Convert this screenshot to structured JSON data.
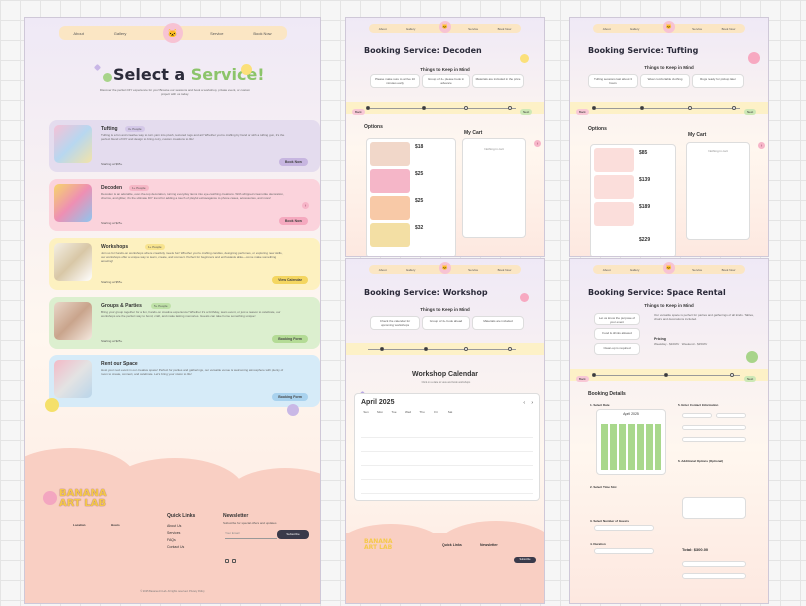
{
  "nav": {
    "about": "About",
    "gallery": "Gallery",
    "service": "Service",
    "book": "Book Now"
  },
  "main": {
    "title_pre": "Select a ",
    "title_em": "Service!",
    "subtitle": "Discover the perfect DIY experience for you! Browse our sessions and book a workshop, private event, or custom project with us today."
  },
  "services": [
    {
      "title": "Tufting",
      "badge": "3+ People",
      "desc": "Tufting is a fun and creative way to turn yarn into plush, textured rugs and art! Whether you're crafting by hand or with a tufting gun, it's the perfect blend of DIY and design to bring cozy, custom creations to life!",
      "price": "Starting at $95+",
      "btn": "Book Now"
    },
    {
      "title": "Decoden",
      "badge": "1+ People",
      "desc": "Decoden is an adorable, over-the-top decoration, turning everyday items into eye-catching creations. With whipped cream-like decoration, charms, and glitter, it's the ultimate DIY trend for adding a touch of playful extravagance to phone cases, accessories, and more!",
      "price": "Starting at $25+",
      "btn": "Book Now"
    },
    {
      "title": "Workshops",
      "badge": "1+ People",
      "desc": "Join us for hands-on workshops where creativity meets fun! Whether you're crafting candles, designing perfumes, or exploring new skills, our workshops offer a unique way to learn, create, and connect. Perfect for beginners and enthusiasts alike—come make something amazing!",
      "price": "Starting at $55+",
      "btn": "View Calendar"
    },
    {
      "title": "Groups & Parties",
      "badge": "5+ People",
      "desc": "Bring your group together for a fun, hands-on creative experience! Whether it's a birthday, team event, or just a reason to celebrate, our workshops are the perfect way to bond, craft, and make lasting memories. Guests can take home something unique!",
      "price": "Starting at $25+",
      "btn": "Booking Form"
    },
    {
      "title": "Rent our Space",
      "badge": "",
      "desc": "Host your next event in our creative space! Perfect for parties and gatherings, our versatile venue is welcoming atmosphere with plenty of room to create, connect, and celebrate. Let's bring your vision to life!",
      "price": "",
      "btn": "Booking Form"
    }
  ],
  "footer": {
    "brand1": "BANANA",
    "brand2": "ART LAB",
    "quick": "Quick Links",
    "links": [
      "About Us",
      "Services",
      "FAQs",
      "Contact Us"
    ],
    "newsletter": "Newsletter",
    "news_sub": "Subscribe for special offers and updates",
    "email_ph": "Your Email",
    "subscribe": "Subscribe",
    "location_h": "Location",
    "hours_h": "Hours",
    "copyright": "© 2025 Banana Art Lab. All rights reserved. Privacy Policy"
  },
  "decoden": {
    "title": "Booking Service: Decoden",
    "keep": "Things to Keep in Mind",
    "options": "Options",
    "cart": "My Cart",
    "empty": "Nothing in cart",
    "prices": [
      "$18",
      "$25",
      "$25",
      "$32"
    ]
  },
  "tufting": {
    "title": "Booking Service: Tufting",
    "keep": "Things to Keep in Mind",
    "options": "Options",
    "cart": "My Cart",
    "empty": "Nothing in cart",
    "prices": [
      "$85",
      "$139",
      "$189",
      "$229"
    ]
  },
  "workshop": {
    "title": "Booking Service: Workshop",
    "keep": "Things to Keep in Mind",
    "cal_title": "Workshop Calendar",
    "month": "April 2025",
    "days": [
      "Sun",
      "Mon",
      "Tue",
      "Wed",
      "Thu",
      "Fri",
      "Sat"
    ]
  },
  "rental": {
    "title": "Booking Service: Space Rental",
    "keep": "Things to Keep in Mind",
    "details": "Booking Details",
    "s1": "1. Select Date",
    "s2": "2. Select Time Slot",
    "s3": "3. Select Number of Guests",
    "s4": "4. Duration",
    "s5": "5. Enter Contact Information",
    "s6": "6. Additional Options (Optional)",
    "mini_month": "April 2025",
    "total": "Total: $300.00",
    "pricing": "Pricing",
    "book": "Book"
  },
  "steps": [
    "Choose",
    "Options",
    "Booking Details",
    "Confirmation"
  ],
  "colors": {
    "purple": "#e4dcee",
    "pink": "#fbd3dc",
    "yellow": "#fdf1c0",
    "green": "#dcefcf",
    "blue": "#d6ebf8",
    "btn": "#c7b6e0"
  }
}
